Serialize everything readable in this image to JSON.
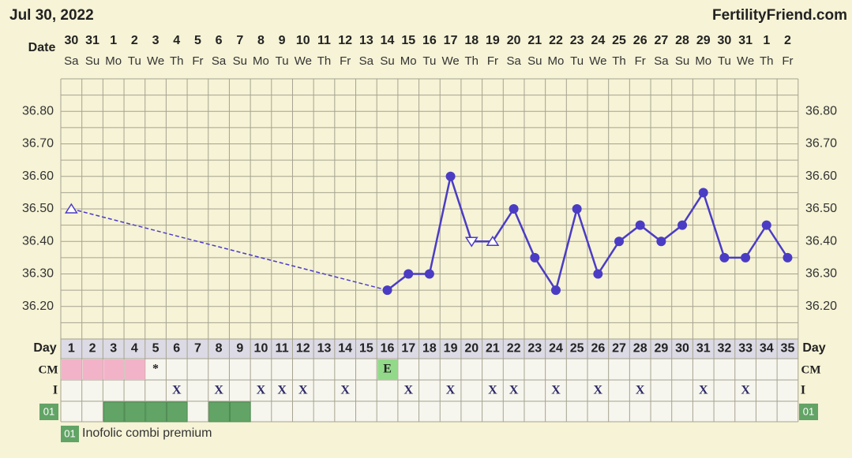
{
  "header": {
    "date": "Jul 30, 2022",
    "site": "FertilityFriend.com"
  },
  "chart_data": {
    "type": "line",
    "date_label": "Date",
    "categories": [
      "30",
      "31",
      "1",
      "2",
      "3",
      "4",
      "5",
      "6",
      "7",
      "8",
      "9",
      "10",
      "11",
      "12",
      "13",
      "14",
      "15",
      "16",
      "17",
      "18",
      "19",
      "20",
      "21",
      "22",
      "23",
      "24",
      "25",
      "26",
      "27",
      "28",
      "29",
      "30",
      "31",
      "1",
      "2"
    ],
    "weekdays": [
      "Sa",
      "Su",
      "Mo",
      "Tu",
      "We",
      "Th",
      "Fr",
      "Sa",
      "Su",
      "Mo",
      "Tu",
      "We",
      "Th",
      "Fr",
      "Sa",
      "Su",
      "Mo",
      "Tu",
      "We",
      "Th",
      "Fr",
      "Sa",
      "Su",
      "Mo",
      "Tu",
      "We",
      "Th",
      "Fr",
      "Sa",
      "Su",
      "Mo",
      "Tu",
      "We",
      "Th",
      "Fr"
    ],
    "values": [
      36.5,
      null,
      null,
      null,
      null,
      null,
      null,
      null,
      null,
      null,
      null,
      null,
      null,
      null,
      null,
      36.25,
      36.3,
      36.3,
      36.6,
      36.4,
      36.4,
      36.5,
      36.35,
      36.25,
      36.5,
      36.3,
      36.4,
      36.45,
      36.4,
      36.45,
      36.55,
      36.35,
      36.35,
      36.45,
      36.35
    ],
    "markers": [
      "open-up",
      null,
      null,
      null,
      null,
      null,
      null,
      null,
      null,
      null,
      null,
      null,
      null,
      null,
      null,
      "filled",
      "filled",
      "filled",
      "filled",
      "open-down",
      "open-up",
      "filled",
      "filled",
      "filled",
      "filled",
      "filled",
      "filled",
      "filled",
      "filled",
      "filled",
      "filled",
      "filled",
      "filled",
      "filled",
      "filled"
    ],
    "color": "#4b3cc4",
    "ylim": [
      36.1,
      36.9
    ],
    "yticks": [
      {
        "value": 36.2,
        "label": "36.20"
      },
      {
        "value": 36.3,
        "label": "36.30"
      },
      {
        "value": 36.4,
        "label": "36.40"
      },
      {
        "value": 36.5,
        "label": "36.50"
      },
      {
        "value": 36.6,
        "label": "36.60"
      },
      {
        "value": 36.7,
        "label": "36.70"
      },
      {
        "value": 36.8,
        "label": "36.80"
      }
    ],
    "grid": true
  },
  "rows": {
    "day_label": "Day",
    "days": [
      1,
      2,
      3,
      4,
      5,
      6,
      7,
      8,
      9,
      10,
      11,
      12,
      13,
      14,
      15,
      16,
      17,
      18,
      19,
      20,
      21,
      22,
      23,
      24,
      25,
      26,
      27,
      28,
      29,
      30,
      31,
      32,
      33,
      34,
      35
    ],
    "cm_label": "CM",
    "cm": [
      null,
      null,
      null,
      null,
      "*",
      null,
      null,
      null,
      null,
      null,
      null,
      null,
      null,
      null,
      null,
      "E",
      null,
      null,
      null,
      null,
      null,
      null,
      null,
      null,
      null,
      null,
      null,
      null,
      null,
      null,
      null,
      null,
      null,
      null,
      null
    ],
    "cm_colors": [
      "#f2b3c8",
      "#f2b3c8",
      "#f2b3c8",
      "#f2b3c8",
      null,
      null,
      null,
      null,
      null,
      null,
      null,
      null,
      null,
      null,
      null,
      "#93d98a",
      null,
      null,
      null,
      null,
      null,
      null,
      null,
      null,
      null,
      null,
      null,
      null,
      null,
      null,
      null,
      null,
      null,
      null,
      null
    ],
    "i_label": "I",
    "i": [
      null,
      null,
      null,
      null,
      null,
      "X",
      null,
      "X",
      null,
      "X",
      "X",
      "X",
      null,
      "X",
      null,
      null,
      "X",
      null,
      "X",
      null,
      "X",
      "X",
      null,
      "X",
      null,
      "X",
      null,
      "X",
      null,
      null,
      "X",
      null,
      "X",
      null,
      null
    ],
    "med_code": "01",
    "med_color": "#62a466",
    "med": [
      false,
      false,
      true,
      true,
      true,
      true,
      false,
      true,
      true,
      false,
      false,
      false,
      false,
      false,
      false,
      false,
      false,
      false,
      false,
      false,
      false,
      false,
      false,
      false,
      false,
      false,
      false,
      false,
      false,
      false,
      false,
      false,
      false,
      false,
      false
    ]
  },
  "legend": {
    "code": "01",
    "text": "Inofolic combi premium"
  }
}
